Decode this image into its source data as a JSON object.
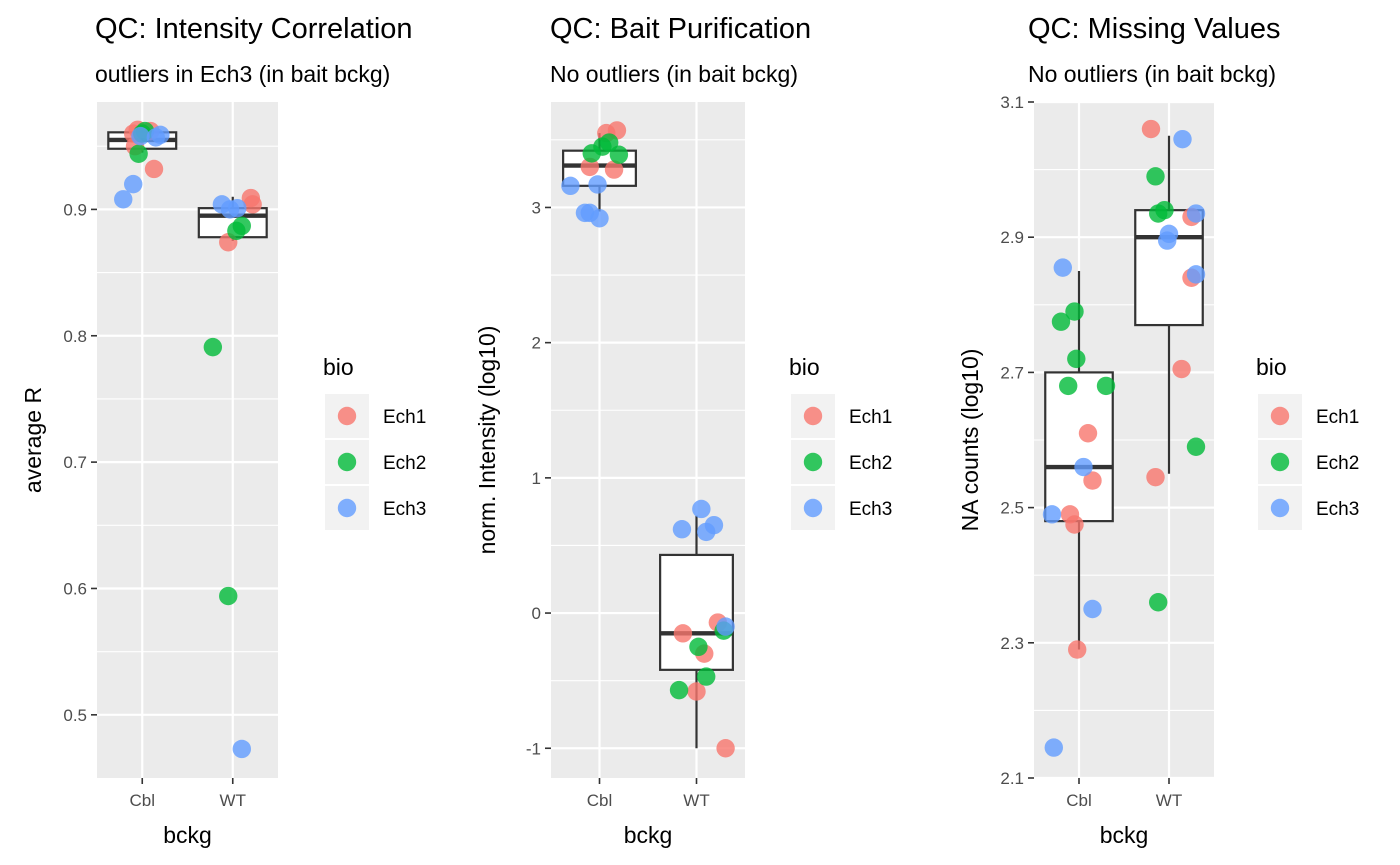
{
  "chart_data": [
    {
      "type": "box",
      "title": "QC: Intensity Correlation",
      "subtitle": "outliers in Ech3 (in bait bckg)",
      "xlabel": "bckg",
      "ylabel": "average R",
      "categories": [
        "Cbl",
        "WT"
      ],
      "ylim": [
        0.45,
        0.985
      ],
      "yticks": [
        0.5,
        0.6,
        0.7,
        0.8,
        0.9
      ],
      "ytick_labels": [
        "0.5",
        "0.6",
        "0.7",
        "0.8",
        "0.9"
      ],
      "grid": true,
      "boxes": [
        {
          "category": "Cbl",
          "q1": 0.948,
          "median": 0.955,
          "q3": 0.961,
          "whisker_low": 0.945,
          "whisker_high": 0.964
        },
        {
          "category": "WT",
          "q1": 0.878,
          "median": 0.895,
          "q3": 0.901,
          "whisker_low": 0.875,
          "whisker_high": 0.91
        }
      ],
      "series": [
        {
          "name": "Ech1",
          "points": [
            {
              "x": "Cbl",
              "dx": -0.08,
              "y": 0.95
            },
            {
              "x": "Cbl",
              "dx": -0.1,
              "y": 0.96
            },
            {
              "x": "Cbl",
              "dx": -0.05,
              "y": 0.963
            },
            {
              "x": "Cbl",
              "dx": 0.09,
              "y": 0.962
            },
            {
              "x": "Cbl",
              "dx": 0.13,
              "y": 0.932
            },
            {
              "x": "WT",
              "dx": -0.05,
              "y": 0.874
            },
            {
              "x": "WT",
              "dx": 0.2,
              "y": 0.909
            },
            {
              "x": "WT",
              "dx": 0.22,
              "y": 0.904
            }
          ]
        },
        {
          "name": "Ech2",
          "points": [
            {
              "x": "Cbl",
              "dx": -0.04,
              "y": 0.944
            },
            {
              "x": "Cbl",
              "dx": 0.0,
              "y": 0.96
            },
            {
              "x": "Cbl",
              "dx": 0.03,
              "y": 0.962
            },
            {
              "x": "WT",
              "dx": -0.22,
              "y": 0.791
            },
            {
              "x": "WT",
              "dx": -0.05,
              "y": 0.594
            },
            {
              "x": "WT",
              "dx": 0.04,
              "y": 0.883
            },
            {
              "x": "WT",
              "dx": 0.1,
              "y": 0.887
            }
          ]
        },
        {
          "name": "Ech3",
          "points": [
            {
              "x": "Cbl",
              "dx": -0.21,
              "y": 0.908
            },
            {
              "x": "Cbl",
              "dx": -0.1,
              "y": 0.92
            },
            {
              "x": "Cbl",
              "dx": -0.02,
              "y": 0.958
            },
            {
              "x": "Cbl",
              "dx": 0.15,
              "y": 0.957
            },
            {
              "x": "Cbl",
              "dx": 0.2,
              "y": 0.959
            },
            {
              "x": "WT",
              "dx": -0.12,
              "y": 0.904
            },
            {
              "x": "WT",
              "dx": -0.03,
              "y": 0.9
            },
            {
              "x": "WT",
              "dx": 0.05,
              "y": 0.901
            },
            {
              "x": "WT",
              "dx": 0.1,
              "y": 0.473
            }
          ]
        }
      ],
      "legend": {
        "title": "bio",
        "position": "right"
      }
    },
    {
      "type": "box",
      "title": "QC: Bait Purification",
      "subtitle": "No outliers (in bait bckg)",
      "xlabel": "bckg",
      "ylabel": "norm. Intensity (log10)",
      "categories": [
        "Cbl",
        "WT"
      ],
      "ylim": [
        -1.22,
        3.78
      ],
      "yticks": [
        -1,
        0,
        1,
        2,
        3
      ],
      "ytick_labels": [
        "-1",
        "0",
        "1",
        "2",
        "3"
      ],
      "grid": true,
      "boxes": [
        {
          "category": "Cbl",
          "q1": 3.16,
          "median": 3.31,
          "q3": 3.42,
          "whisker_low": 2.97,
          "whisker_high": 3.55
        },
        {
          "category": "WT",
          "q1": -0.42,
          "median": -0.15,
          "q3": 0.43,
          "whisker_low": -1.0,
          "whisker_high": 0.72
        }
      ],
      "series": [
        {
          "name": "Ech1",
          "points": [
            {
              "x": "Cbl",
              "dx": -0.1,
              "y": 3.3
            },
            {
              "x": "Cbl",
              "dx": 0.07,
              "y": 3.55
            },
            {
              "x": "Cbl",
              "dx": 0.18,
              "y": 3.57
            },
            {
              "x": "Cbl",
              "dx": 0.15,
              "y": 3.28
            },
            {
              "x": "WT",
              "dx": -0.14,
              "y": -0.15
            },
            {
              "x": "WT",
              "dx": 0.0,
              "y": -0.58
            },
            {
              "x": "WT",
              "dx": 0.08,
              "y": -0.3
            },
            {
              "x": "WT",
              "dx": 0.22,
              "y": -0.07
            },
            {
              "x": "WT",
              "dx": 0.3,
              "y": -1.0
            }
          ]
        },
        {
          "name": "Ech2",
          "points": [
            {
              "x": "Cbl",
              "dx": -0.08,
              "y": 3.4
            },
            {
              "x": "Cbl",
              "dx": 0.03,
              "y": 3.45
            },
            {
              "x": "Cbl",
              "dx": 0.1,
              "y": 3.48
            },
            {
              "x": "Cbl",
              "dx": 0.2,
              "y": 3.39
            },
            {
              "x": "WT",
              "dx": -0.18,
              "y": -0.57
            },
            {
              "x": "WT",
              "dx": 0.02,
              "y": -0.25
            },
            {
              "x": "WT",
              "dx": 0.1,
              "y": -0.47
            },
            {
              "x": "WT",
              "dx": 0.28,
              "y": -0.13
            }
          ]
        },
        {
          "name": "Ech3",
          "points": [
            {
              "x": "Cbl",
              "dx": -0.3,
              "y": 3.16
            },
            {
              "x": "Cbl",
              "dx": -0.15,
              "y": 2.96
            },
            {
              "x": "Cbl",
              "dx": -0.1,
              "y": 2.96
            },
            {
              "x": "Cbl",
              "dx": -0.02,
              "y": 3.17
            },
            {
              "x": "Cbl",
              "dx": 0.0,
              "y": 2.92
            },
            {
              "x": "WT",
              "dx": -0.15,
              "y": 0.62
            },
            {
              "x": "WT",
              "dx": 0.05,
              "y": 0.77
            },
            {
              "x": "WT",
              "dx": 0.1,
              "y": 0.6
            },
            {
              "x": "WT",
              "dx": 0.18,
              "y": 0.65
            },
            {
              "x": "WT",
              "dx": 0.3,
              "y": -0.1
            }
          ]
        }
      ],
      "legend": {
        "title": "bio",
        "position": "right"
      }
    },
    {
      "type": "box",
      "title": "QC: Missing Values",
      "subtitle": "No outliers (in bait bckg)",
      "xlabel": "bckg",
      "ylabel": "NA counts (log10)",
      "categories": [
        "Cbl",
        "WT"
      ],
      "ylim": [
        2.1,
        3.1
      ],
      "yticks": [
        2.1,
        2.3,
        2.5,
        2.7,
        2.9,
        3.1
      ],
      "ytick_labels": [
        "2.1",
        "2.3",
        "2.5",
        "2.7",
        "2.9",
        "3.1"
      ],
      "grid": true,
      "boxes": [
        {
          "category": "Cbl",
          "q1": 2.48,
          "median": 2.56,
          "q3": 2.7,
          "whisker_low": 2.29,
          "whisker_high": 2.85
        },
        {
          "category": "WT",
          "q1": 2.77,
          "median": 2.9,
          "q3": 2.94,
          "whisker_low": 2.55,
          "whisker_high": 3.05
        }
      ],
      "series": [
        {
          "name": "Ech1",
          "points": [
            {
              "x": "Cbl",
              "dx": -0.1,
              "y": 2.49
            },
            {
              "x": "Cbl",
              "dx": -0.05,
              "y": 2.475
            },
            {
              "x": "Cbl",
              "dx": -0.02,
              "y": 2.29
            },
            {
              "x": "Cbl",
              "dx": 0.1,
              "y": 2.61
            },
            {
              "x": "Cbl",
              "dx": 0.15,
              "y": 2.54
            },
            {
              "x": "WT",
              "dx": -0.2,
              "y": 3.06
            },
            {
              "x": "WT",
              "dx": -0.15,
              "y": 2.545
            },
            {
              "x": "WT",
              "dx": 0.14,
              "y": 2.705
            },
            {
              "x": "WT",
              "dx": 0.25,
              "y": 2.93
            },
            {
              "x": "WT",
              "dx": 0.25,
              "y": 2.84
            }
          ]
        },
        {
          "name": "Ech2",
          "points": [
            {
              "x": "Cbl",
              "dx": -0.2,
              "y": 2.775
            },
            {
              "x": "Cbl",
              "dx": -0.12,
              "y": 2.68
            },
            {
              "x": "Cbl",
              "dx": -0.05,
              "y": 2.79
            },
            {
              "x": "Cbl",
              "dx": -0.03,
              "y": 2.72
            },
            {
              "x": "Cbl",
              "dx": 0.3,
              "y": 2.68
            },
            {
              "x": "WT",
              "dx": -0.15,
              "y": 2.99
            },
            {
              "x": "WT",
              "dx": -0.12,
              "y": 2.935
            },
            {
              "x": "WT",
              "dx": -0.05,
              "y": 2.94
            },
            {
              "x": "WT",
              "dx": -0.12,
              "y": 2.36
            },
            {
              "x": "WT",
              "dx": 0.3,
              "y": 2.59
            }
          ]
        },
        {
          "name": "Ech3",
          "points": [
            {
              "x": "Cbl",
              "dx": -0.18,
              "y": 2.855
            },
            {
              "x": "Cbl",
              "dx": -0.3,
              "y": 2.49
            },
            {
              "x": "Cbl",
              "dx": 0.05,
              "y": 2.56
            },
            {
              "x": "Cbl",
              "dx": 0.15,
              "y": 2.35
            },
            {
              "x": "Cbl",
              "dx": -0.28,
              "y": 2.145
            },
            {
              "x": "WT",
              "dx": -0.02,
              "y": 2.895
            },
            {
              "x": "WT",
              "dx": 0.0,
              "y": 2.905
            },
            {
              "x": "WT",
              "dx": 0.15,
              "y": 3.045
            },
            {
              "x": "WT",
              "dx": 0.3,
              "y": 2.935
            },
            {
              "x": "WT",
              "dx": 0.3,
              "y": 2.845
            }
          ]
        }
      ],
      "legend": {
        "title": "bio",
        "position": "right"
      }
    }
  ],
  "colors": {
    "Ech1": "#F8766D",
    "Ech2": "#00BA38",
    "Ech3": "#619CFF",
    "panel_bg": "#EBEBEB",
    "grid": "#FFFFFF",
    "box_stroke": "#333333"
  }
}
